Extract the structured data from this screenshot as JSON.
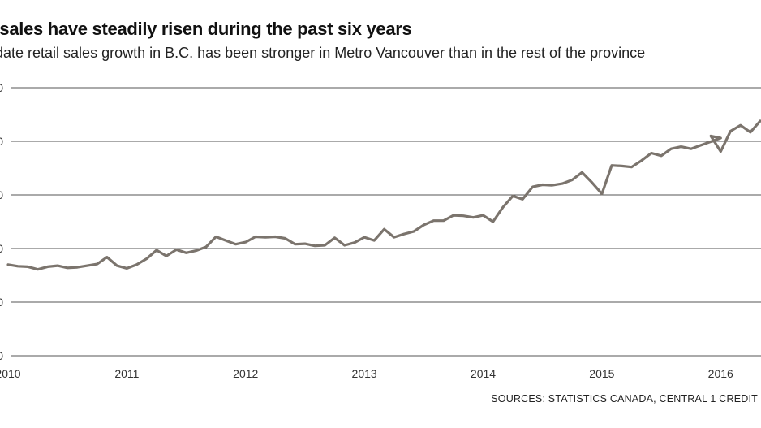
{
  "chart": {
    "title": "il sales have steadily risen during the past six years",
    "subtitle": "date retail sales growth in B.C. has been stronger in Metro Vancouver than in the rest of the province",
    "source": "SOURCES:  STATISTICS CANADA, CENTRAL 1 CREDIT"
  },
  "colors": {
    "line": "#7b746d",
    "grid": "#555555",
    "text": "#222222"
  },
  "chart_data": {
    "type": "line",
    "title": "il sales have steadily risen during the past six years",
    "subtitle": "date retail sales growth in B.C. has been stronger in Metro Vancouver than in the rest of the province",
    "xlabel": "",
    "ylabel": "",
    "x_tick_labels": [
      "2010",
      "2011",
      "2012",
      "2013",
      "2014",
      "2015",
      "2016"
    ],
    "y_tick_labels": [
      "0",
      "0",
      "0",
      "0",
      "0",
      "0"
    ],
    "ylim": [
      0,
      5
    ],
    "grid": true,
    "legend": "none",
    "series": [
      {
        "values": [
          [
            2010.0,
            1.7
          ],
          [
            2010.083,
            1.67
          ],
          [
            2010.167,
            1.66
          ],
          [
            2010.25,
            1.61
          ],
          [
            2010.333,
            1.66
          ],
          [
            2010.417,
            1.68
          ],
          [
            2010.5,
            1.64
          ],
          [
            2010.583,
            1.65
          ],
          [
            2010.667,
            1.68
          ],
          [
            2010.75,
            1.71
          ],
          [
            2010.833,
            1.84
          ],
          [
            2010.917,
            1.68
          ],
          [
            2011.0,
            1.63
          ],
          [
            2011.083,
            1.7
          ],
          [
            2011.167,
            1.81
          ],
          [
            2011.25,
            1.97
          ],
          [
            2011.333,
            1.86
          ],
          [
            2011.417,
            1.98
          ],
          [
            2011.5,
            1.92
          ],
          [
            2011.583,
            1.96
          ],
          [
            2011.667,
            2.03
          ],
          [
            2011.75,
            2.22
          ],
          [
            2011.833,
            2.15
          ],
          [
            2011.917,
            2.08
          ],
          [
            2012.0,
            2.12
          ],
          [
            2012.083,
            2.22
          ],
          [
            2012.167,
            2.21
          ],
          [
            2012.25,
            2.22
          ],
          [
            2012.333,
            2.19
          ],
          [
            2012.417,
            2.08
          ],
          [
            2012.5,
            2.09
          ],
          [
            2012.583,
            2.05
          ],
          [
            2012.667,
            2.06
          ],
          [
            2012.75,
            2.2
          ],
          [
            2012.833,
            2.06
          ],
          [
            2012.917,
            2.11
          ],
          [
            2013.0,
            2.21
          ],
          [
            2013.083,
            2.15
          ],
          [
            2013.167,
            2.36
          ],
          [
            2013.25,
            2.21
          ],
          [
            2013.333,
            2.27
          ],
          [
            2013.417,
            2.32
          ],
          [
            2013.5,
            2.44
          ],
          [
            2013.583,
            2.52
          ],
          [
            2013.667,
            2.52
          ],
          [
            2013.75,
            2.62
          ],
          [
            2013.833,
            2.61
          ],
          [
            2013.917,
            2.58
          ],
          [
            2014.0,
            2.62
          ],
          [
            2014.083,
            2.5
          ],
          [
            2014.167,
            2.77
          ],
          [
            2014.25,
            2.98
          ],
          [
            2014.333,
            2.92
          ],
          [
            2014.417,
            3.15
          ],
          [
            2014.5,
            3.19
          ],
          [
            2014.583,
            3.18
          ],
          [
            2014.667,
            3.21
          ],
          [
            2014.75,
            3.28
          ],
          [
            2014.833,
            3.42
          ],
          [
            2014.917,
            3.23
          ],
          [
            2015.0,
            3.02
          ],
          [
            2015.083,
            3.55
          ],
          [
            2015.167,
            3.54
          ],
          [
            2015.25,
            3.52
          ],
          [
            2015.333,
            3.64
          ],
          [
            2015.417,
            3.78
          ],
          [
            2015.5,
            3.73
          ],
          [
            2015.583,
            3.86
          ],
          [
            2015.667,
            3.9
          ],
          [
            2015.75,
            3.86
          ],
          [
            2016.0,
            4.06
          ],
          [
            2015.917,
            4.1
          ],
          [
            2016.0,
            3.81
          ],
          [
            2016.083,
            4.19
          ],
          [
            2016.167,
            4.3
          ],
          [
            2016.25,
            4.17
          ],
          [
            2016.333,
            4.38
          ]
        ]
      }
    ]
  }
}
